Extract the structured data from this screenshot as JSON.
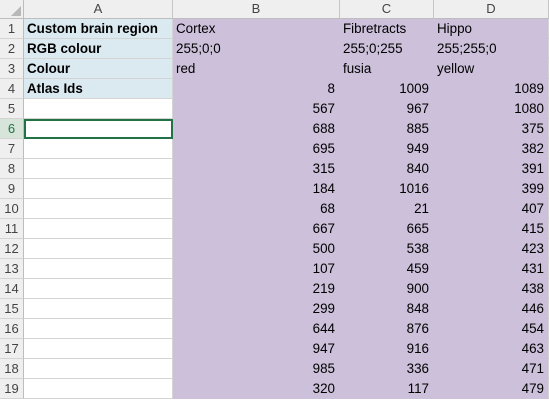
{
  "columns": [
    "A",
    "B",
    "C",
    "D"
  ],
  "rows": [
    {
      "n": "1",
      "a": "Custom brain region",
      "b": "Cortex",
      "c": "Fibretracts",
      "d": "Hippo"
    },
    {
      "n": "2",
      "a": "RGB colour",
      "b": "255;0;0",
      "c": "255;0;255",
      "d": "255;255;0"
    },
    {
      "n": "3",
      "a": "Colour",
      "b": "red",
      "c": "fusia",
      "d": "yellow"
    },
    {
      "n": "4",
      "a": "Atlas Ids",
      "b": "8",
      "c": "1009",
      "d": "1089"
    },
    {
      "n": "5",
      "a": "",
      "b": "567",
      "c": "967",
      "d": "1080"
    },
    {
      "n": "6",
      "a": "",
      "b": "688",
      "c": "885",
      "d": "375"
    },
    {
      "n": "7",
      "a": "",
      "b": "695",
      "c": "949",
      "d": "382"
    },
    {
      "n": "8",
      "a": "",
      "b": "315",
      "c": "840",
      "d": "391"
    },
    {
      "n": "9",
      "a": "",
      "b": "184",
      "c": "1016",
      "d": "399"
    },
    {
      "n": "10",
      "a": "",
      "b": "68",
      "c": "21",
      "d": "407"
    },
    {
      "n": "11",
      "a": "",
      "b": "667",
      "c": "665",
      "d": "415"
    },
    {
      "n": "12",
      "a": "",
      "b": "500",
      "c": "538",
      "d": "423"
    },
    {
      "n": "13",
      "a": "",
      "b": "107",
      "c": "459",
      "d": "431"
    },
    {
      "n": "14",
      "a": "",
      "b": "219",
      "c": "900",
      "d": "438"
    },
    {
      "n": "15",
      "a": "",
      "b": "299",
      "c": "848",
      "d": "446"
    },
    {
      "n": "16",
      "a": "",
      "b": "644",
      "c": "876",
      "d": "454"
    },
    {
      "n": "17",
      "a": "",
      "b": "947",
      "c": "916",
      "d": "463"
    },
    {
      "n": "18",
      "a": "",
      "b": "985",
      "c": "336",
      "d": "471"
    },
    {
      "n": "19",
      "a": "",
      "b": "320",
      "c": "117",
      "d": "479"
    }
  ],
  "active_row": "6",
  "colors": {
    "label_fill": "#dbe9f1",
    "data_fill": "#ccc0da",
    "selection": "#217346"
  }
}
